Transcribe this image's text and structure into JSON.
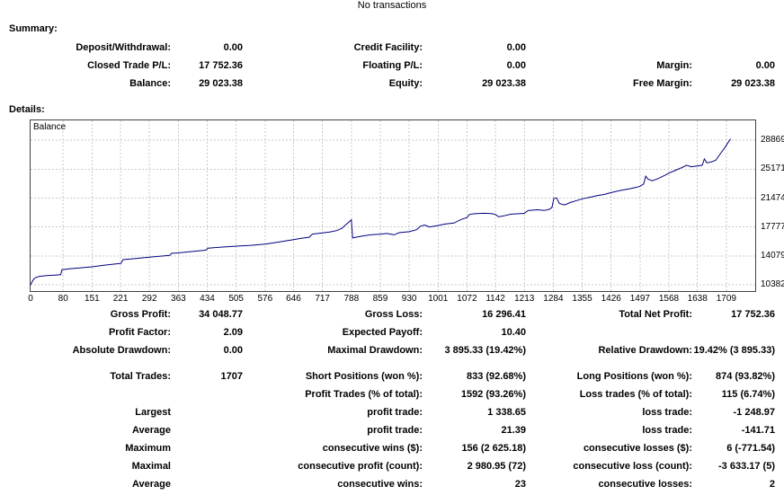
{
  "header": {
    "note": "No transactions"
  },
  "summary": {
    "title": "Summary:",
    "rows": [
      {
        "cells": [
          {
            "label": "Deposit/Withdrawal:",
            "value": "0.00"
          },
          {
            "label": "Credit Facility:",
            "value": "0.00"
          },
          {
            "label": "",
            "value": ""
          }
        ]
      },
      {
        "cells": [
          {
            "label": "Closed Trade P/L:",
            "value": "17 752.36"
          },
          {
            "label": "Floating P/L:",
            "value": "0.00"
          },
          {
            "label": "Margin:",
            "value": "0.00"
          }
        ]
      },
      {
        "cells": [
          {
            "label": "Balance:",
            "value": "29 023.38"
          },
          {
            "label": "Equity:",
            "value": "29 023.38"
          },
          {
            "label": "Free Margin:",
            "value": "29 023.38"
          }
        ]
      }
    ]
  },
  "details": {
    "title": "Details:"
  },
  "chart_data": {
    "type": "line",
    "title": "Balance",
    "line_color": "#000080",
    "grid_color": "#c9c9c9",
    "x_range": [
      0,
      1780
    ],
    "y_range": [
      9600,
      31400
    ],
    "x_ticks": [
      0,
      80,
      151,
      221,
      292,
      363,
      434,
      505,
      576,
      646,
      717,
      788,
      859,
      930,
      1001,
      1072,
      1142,
      1213,
      1284,
      1355,
      1426,
      1497,
      1568,
      1638,
      1709
    ],
    "y_ticks": [
      10382,
      14079,
      17777,
      21474,
      25171,
      28869
    ],
    "series": [
      {
        "name": "Balance",
        "points": [
          [
            0,
            10400
          ],
          [
            4,
            10800
          ],
          [
            8,
            11150
          ],
          [
            14,
            11350
          ],
          [
            22,
            11480
          ],
          [
            40,
            11570
          ],
          [
            60,
            11640
          ],
          [
            74,
            11690
          ],
          [
            77,
            12330
          ],
          [
            95,
            12430
          ],
          [
            120,
            12560
          ],
          [
            151,
            12700
          ],
          [
            180,
            12900
          ],
          [
            210,
            13060
          ],
          [
            222,
            13130
          ],
          [
            227,
            13620
          ],
          [
            250,
            13720
          ],
          [
            275,
            13850
          ],
          [
            292,
            13930
          ],
          [
            320,
            14060
          ],
          [
            342,
            14160
          ],
          [
            346,
            14420
          ],
          [
            363,
            14480
          ],
          [
            395,
            14650
          ],
          [
            430,
            14820
          ],
          [
            436,
            15090
          ],
          [
            460,
            15180
          ],
          [
            505,
            15340
          ],
          [
            540,
            15440
          ],
          [
            576,
            15600
          ],
          [
            600,
            15780
          ],
          [
            625,
            16000
          ],
          [
            646,
            16180
          ],
          [
            665,
            16350
          ],
          [
            685,
            16480
          ],
          [
            692,
            16880
          ],
          [
            717,
            17020
          ],
          [
            735,
            17150
          ],
          [
            752,
            17320
          ],
          [
            765,
            17620
          ],
          [
            775,
            18100
          ],
          [
            782,
            18420
          ],
          [
            788,
            18700
          ],
          [
            791,
            16380
          ],
          [
            800,
            16480
          ],
          [
            815,
            16620
          ],
          [
            835,
            16780
          ],
          [
            859,
            16880
          ],
          [
            875,
            16960
          ],
          [
            893,
            16780
          ],
          [
            905,
            17060
          ],
          [
            930,
            17180
          ],
          [
            948,
            17440
          ],
          [
            958,
            17890
          ],
          [
            968,
            18030
          ],
          [
            980,
            17790
          ],
          [
            1001,
            17980
          ],
          [
            1018,
            18160
          ],
          [
            1040,
            18280
          ],
          [
            1058,
            18760
          ],
          [
            1072,
            18980
          ],
          [
            1078,
            19380
          ],
          [
            1090,
            19480
          ],
          [
            1115,
            19540
          ],
          [
            1135,
            19480
          ],
          [
            1142,
            19380
          ],
          [
            1150,
            19080
          ],
          [
            1162,
            19200
          ],
          [
            1180,
            19420
          ],
          [
            1205,
            19500
          ],
          [
            1213,
            19540
          ],
          [
            1222,
            19880
          ],
          [
            1245,
            19980
          ],
          [
            1262,
            19890
          ],
          [
            1275,
            20050
          ],
          [
            1281,
            20300
          ],
          [
            1285,
            21420
          ],
          [
            1292,
            21500
          ],
          [
            1299,
            20780
          ],
          [
            1312,
            20600
          ],
          [
            1325,
            20900
          ],
          [
            1342,
            21160
          ],
          [
            1355,
            21380
          ],
          [
            1372,
            21570
          ],
          [
            1392,
            21780
          ],
          [
            1412,
            21980
          ],
          [
            1426,
            22170
          ],
          [
            1450,
            22460
          ],
          [
            1472,
            22670
          ],
          [
            1490,
            22880
          ],
          [
            1497,
            22990
          ],
          [
            1506,
            23280
          ],
          [
            1511,
            24280
          ],
          [
            1517,
            23880
          ],
          [
            1527,
            23690
          ],
          [
            1542,
            23980
          ],
          [
            1560,
            24440
          ],
          [
            1568,
            24660
          ],
          [
            1582,
            24980
          ],
          [
            1600,
            25380
          ],
          [
            1612,
            25680
          ],
          [
            1622,
            25480
          ],
          [
            1638,
            25580
          ],
          [
            1650,
            25680
          ],
          [
            1655,
            26480
          ],
          [
            1661,
            25980
          ],
          [
            1672,
            26090
          ],
          [
            1683,
            26300
          ],
          [
            1692,
            26980
          ],
          [
            1700,
            27560
          ],
          [
            1706,
            27980
          ],
          [
            1711,
            28380
          ],
          [
            1716,
            28780
          ],
          [
            1720,
            29023
          ]
        ]
      }
    ]
  },
  "stats": {
    "rows": [
      {
        "cells": [
          {
            "label": "Gross Profit:",
            "value": "34 048.77"
          },
          {
            "label": "Gross Loss:",
            "value": "16 296.41"
          },
          {
            "label": "Total Net Profit:",
            "value": "17 752.36"
          }
        ]
      },
      {
        "cells": [
          {
            "label": "Profit Factor:",
            "value": "2.09"
          },
          {
            "label": "Expected Payoff:",
            "value": "10.40"
          },
          {
            "label": "",
            "value": ""
          }
        ]
      },
      {
        "cells": [
          {
            "label": "Absolute Drawdown:",
            "value": "0.00"
          },
          {
            "label": "Maximal Drawdown:",
            "value": "3 895.33 (19.42%)"
          },
          {
            "label": "Relative Drawdown:",
            "value": "19.42% (3 895.33)"
          }
        ]
      },
      {
        "gap_before": true,
        "cells": [
          {
            "label": "Total Trades:",
            "value": "1707"
          },
          {
            "label": "Short Positions (won %):",
            "value": "833 (92.68%)"
          },
          {
            "label": "Long Positions (won %):",
            "value": "874 (93.82%)"
          }
        ]
      },
      {
        "cells": [
          {
            "label": "",
            "value": ""
          },
          {
            "label": "Profit Trades (% of total):",
            "value": "1592 (93.26%)"
          },
          {
            "label": "Loss trades (% of total):",
            "value": "115 (6.74%)"
          }
        ]
      },
      {
        "cells": [
          {
            "label": "Largest",
            "value": ""
          },
          {
            "label": "profit trade:",
            "value": "1 338.65"
          },
          {
            "label": "loss trade:",
            "value": "-1 248.97"
          }
        ]
      },
      {
        "cells": [
          {
            "label": "Average",
            "value": ""
          },
          {
            "label": "profit trade:",
            "value": "21.39"
          },
          {
            "label": "loss trade:",
            "value": "-141.71"
          }
        ]
      },
      {
        "cells": [
          {
            "label": "Maximum",
            "value": ""
          },
          {
            "label": "consecutive wins ($):",
            "value": "156 (2 625.18)"
          },
          {
            "label": "consecutive losses ($):",
            "value": "6 (-771.54)"
          }
        ]
      },
      {
        "cells": [
          {
            "label": "Maximal",
            "value": ""
          },
          {
            "label": "consecutive profit (count):",
            "value": "2 980.95 (72)"
          },
          {
            "label": "consecutive loss (count):",
            "value": "-3 633.17 (5)"
          }
        ]
      },
      {
        "cells": [
          {
            "label": "Average",
            "value": ""
          },
          {
            "label": "consecutive wins:",
            "value": "23"
          },
          {
            "label": "consecutive losses:",
            "value": "2"
          }
        ]
      }
    ]
  }
}
